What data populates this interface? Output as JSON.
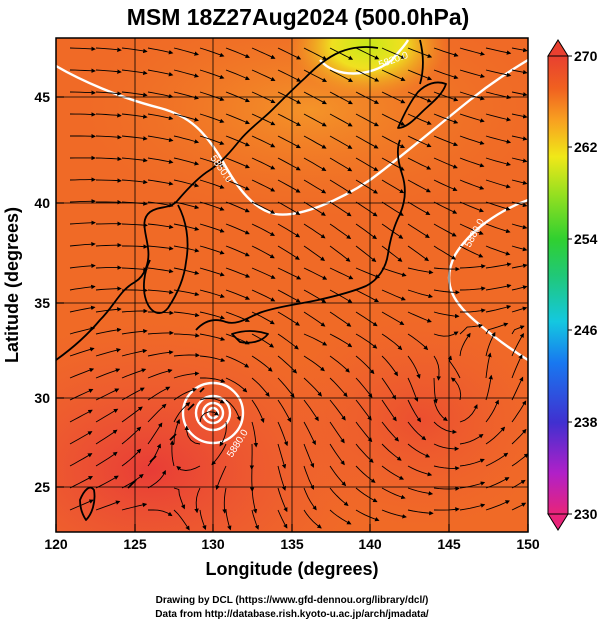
{
  "title": "MSM 18Z27Aug2024 (500.0hPa)",
  "xlabel": "Longitude (degrees)",
  "ylabel": "Latitude (degrees)",
  "x_ticks": [
    "120",
    "125",
    "130",
    "135",
    "140",
    "145",
    "150"
  ],
  "y_ticks": [
    "25",
    "30",
    "35",
    "40",
    "45"
  ],
  "lon_range": [
    120,
    150
  ],
  "lat_range": [
    22.4,
    47.6
  ],
  "colorbar": {
    "min": 230,
    "max": 270,
    "ticks": [
      "270",
      "262",
      "254",
      "246",
      "238",
      "230"
    ],
    "colors": [
      "#e8247a",
      "#b020c8",
      "#4030d0",
      "#1878f0",
      "#14c8e0",
      "#20c878",
      "#30d030",
      "#98e020",
      "#f0e818",
      "#f8a020",
      "#f06020",
      "#e84030"
    ]
  },
  "contour_labels": [
    "5880.0",
    "5880.0",
    "5850.0",
    "5820.0"
  ],
  "contour_color": "#ffffff",
  "credits": {
    "line1": "Drawing by DCL (https://www.gfd-dennou.org/library/dcl/)",
    "line2": "Data from http://database.rish.kyoto-u.ac.jp/arch/jmadata/"
  }
}
